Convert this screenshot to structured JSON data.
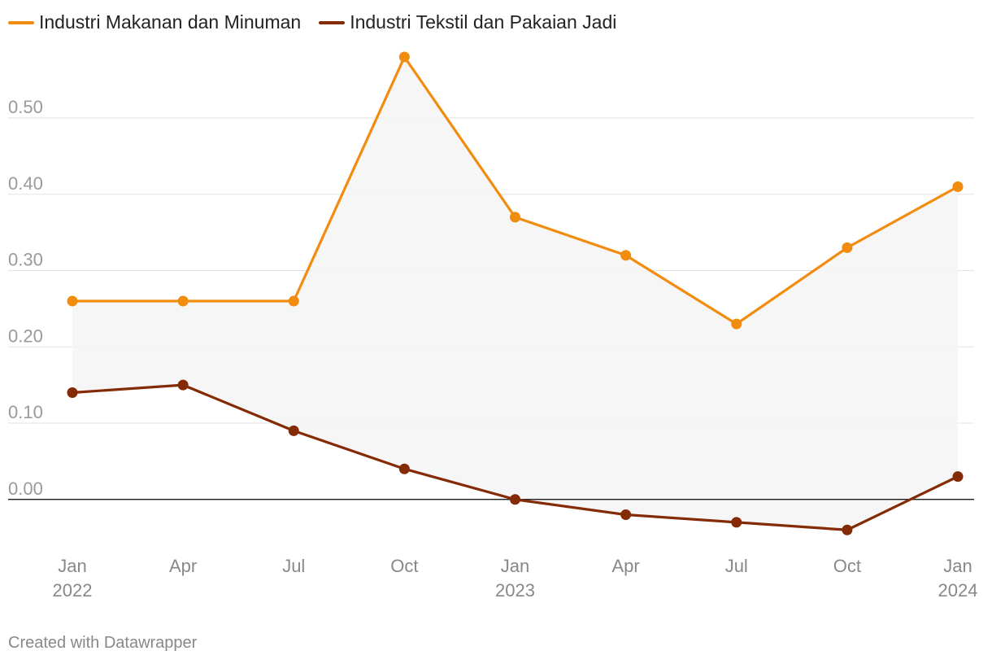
{
  "chart_data": {
    "type": "line",
    "title": "",
    "xlabel": "",
    "ylabel": "",
    "categories": [
      "Jan 2022",
      "Apr 2022",
      "Jul 2022",
      "Oct 2022",
      "Jan 2023",
      "Apr 2023",
      "Jul 2023",
      "Oct 2023",
      "Jan 2024"
    ],
    "x_tick_labels": [
      {
        "month": "Jan",
        "year": "2022"
      },
      {
        "month": "Apr",
        "year": ""
      },
      {
        "month": "Jul",
        "year": ""
      },
      {
        "month": "Oct",
        "year": ""
      },
      {
        "month": "Jan",
        "year": "2023"
      },
      {
        "month": "Apr",
        "year": ""
      },
      {
        "month": "Jul",
        "year": ""
      },
      {
        "month": "Oct",
        "year": ""
      },
      {
        "month": "Jan",
        "year": "2024"
      }
    ],
    "series": [
      {
        "name": "Industri Makanan dan Minuman",
        "color": "#f28c0f",
        "values": [
          0.26,
          0.26,
          0.26,
          0.58,
          0.37,
          0.32,
          0.23,
          0.33,
          0.41
        ]
      },
      {
        "name": "Industri Tekstil dan Pakaian Jadi",
        "color": "#842b06",
        "values": [
          0.14,
          0.15,
          0.09,
          0.04,
          0.0,
          -0.02,
          -0.03,
          -0.04,
          0.03
        ]
      }
    ],
    "y_ticks": [
      "0.50",
      "0.40",
      "0.30",
      "0.20",
      "0.10",
      "0.00"
    ],
    "ylim": [
      -0.06,
      0.58
    ],
    "grid": true,
    "legend_position": "top-left",
    "area_fill_between_series": true,
    "area_fill_color": "#f5f5f5",
    "zero_line_color": "#000000"
  },
  "footer": {
    "credit": "Created with Datawrapper"
  }
}
